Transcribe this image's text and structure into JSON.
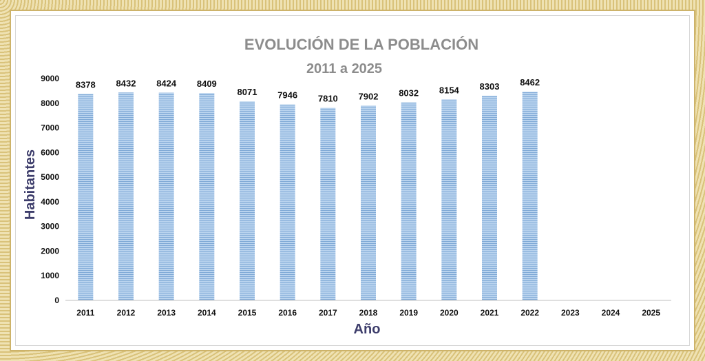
{
  "chart_data": {
    "type": "bar",
    "title": "EVOLUCIÓN DE LA POBLACIÓN",
    "subtitle": "2011 a 2025",
    "xlabel": "Año",
    "ylabel": "Habitantes",
    "ylim": [
      0,
      9000
    ],
    "yticks": [
      0,
      1000,
      2000,
      3000,
      4000,
      5000,
      6000,
      7000,
      8000,
      9000
    ],
    "categories": [
      "2011",
      "2012",
      "2013",
      "2014",
      "2015",
      "2016",
      "2017",
      "2018",
      "2019",
      "2020",
      "2021",
      "2022",
      "2023",
      "2024",
      "2025"
    ],
    "values": [
      8378,
      8432,
      8424,
      8409,
      8071,
      7946,
      7810,
      7902,
      8032,
      8154,
      8303,
      8462,
      null,
      null,
      null
    ],
    "grid": false,
    "bar_color": "#a9c8e8",
    "bar_stripe_color": "#7fa9d6"
  }
}
